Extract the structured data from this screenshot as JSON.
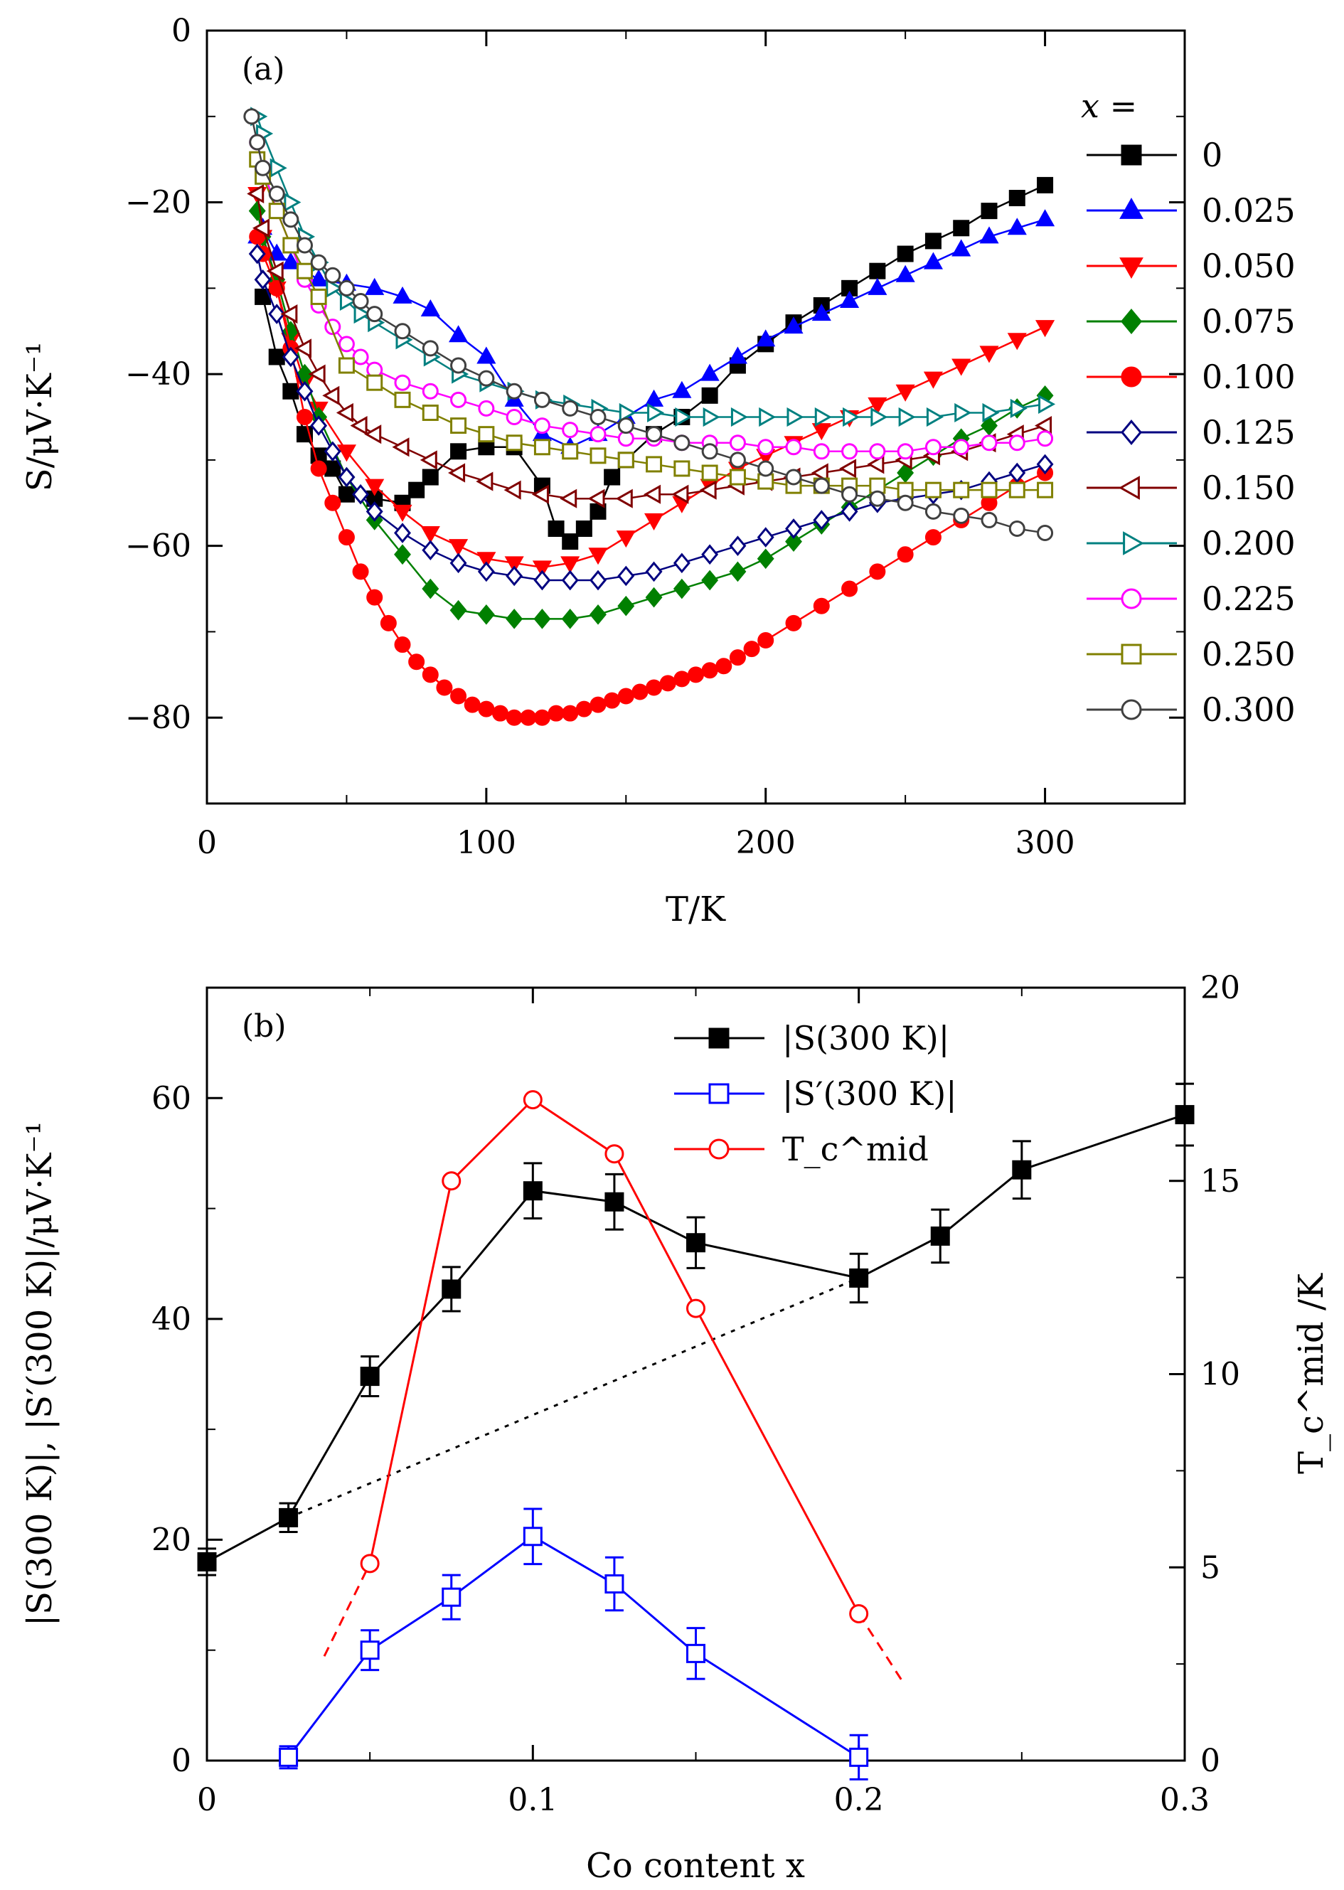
{
  "chart_data": [
    {
      "panel_label": "(a)",
      "type": "line",
      "xlabel": "T/K",
      "ylabel": "S/μV·K⁻¹",
      "xlim": [
        0,
        350
      ],
      "ylim": [
        -90,
        0
      ],
      "xticks": [
        0,
        100,
        200,
        300
      ],
      "yticks": [
        0,
        -20,
        -40,
        -60,
        -80
      ],
      "legend_title": "x =",
      "legend_position": "right",
      "series": [
        {
          "name": "0",
          "color": "#000000",
          "marker": "square",
          "filled": true,
          "x": [
            20,
            25,
            30,
            35,
            40,
            45,
            50,
            60,
            70,
            75,
            80,
            90,
            100,
            110,
            120,
            125,
            130,
            135,
            140,
            145,
            150,
            160,
            170,
            180,
            190,
            200,
            210,
            220,
            230,
            240,
            250,
            260,
            270,
            280,
            290,
            300
          ],
          "y": [
            -31,
            -38,
            -42,
            -47,
            -49.5,
            -51,
            -54,
            -54.5,
            -55,
            -53.5,
            -52,
            -49,
            -48.5,
            -48.5,
            -53,
            -58,
            -59.5,
            -58,
            -56,
            -52,
            -50,
            -47,
            -45,
            -42.5,
            -39,
            -36.5,
            -34,
            -32,
            -30,
            -28,
            -26,
            -24.5,
            -23,
            -21,
            -19.5,
            -18
          ]
        },
        {
          "name": "0.025",
          "color": "#0000ff",
          "marker": "triangle-up",
          "filled": true,
          "x": [
            18,
            20,
            25,
            30,
            40,
            50,
            60,
            70,
            80,
            90,
            100,
            110,
            120,
            130,
            140,
            150,
            160,
            170,
            180,
            190,
            200,
            210,
            220,
            230,
            240,
            250,
            260,
            270,
            280,
            290,
            300
          ],
          "y": [
            -24,
            -23,
            -26,
            -27,
            -29,
            -29.5,
            -30,
            -31,
            -32.5,
            -35.5,
            -38,
            -43,
            -47,
            -48.5,
            -47,
            -45,
            -43,
            -42,
            -40,
            -38,
            -36,
            -34.5,
            -33,
            -31.5,
            -30,
            -28.5,
            -27,
            -25.5,
            -24,
            -23,
            -22
          ]
        },
        {
          "name": "0.050",
          "color": "#ff0000",
          "marker": "triangle-down",
          "filled": true,
          "x": [
            18,
            20,
            25,
            30,
            35,
            40,
            50,
            60,
            70,
            80,
            90,
            100,
            110,
            120,
            130,
            140,
            150,
            160,
            170,
            180,
            190,
            200,
            210,
            220,
            230,
            240,
            250,
            260,
            270,
            280,
            290,
            300
          ],
          "y": [
            -19,
            -24,
            -30,
            -36,
            -41,
            -44,
            -49,
            -53,
            -56,
            -58.5,
            -60,
            -61.5,
            -62,
            -62.5,
            -62,
            -61,
            -59,
            -57,
            -55,
            -53,
            -51,
            -49.5,
            -48,
            -46.5,
            -45,
            -43.5,
            -42,
            -40.5,
            -39,
            -37.5,
            -36,
            -34.5
          ]
        },
        {
          "name": "0.075",
          "color": "#008000",
          "marker": "diamond",
          "filled": true,
          "x": [
            18,
            20,
            25,
            30,
            35,
            40,
            50,
            60,
            70,
            80,
            90,
            100,
            110,
            120,
            130,
            140,
            150,
            160,
            170,
            180,
            190,
            200,
            210,
            220,
            230,
            240,
            250,
            260,
            270,
            280,
            290,
            300
          ],
          "y": [
            -21,
            -24,
            -29,
            -35,
            -40,
            -45,
            -52,
            -57,
            -61,
            -65,
            -67.5,
            -68,
            -68.5,
            -68.5,
            -68.5,
            -68,
            -67,
            -66,
            -65,
            -64,
            -63,
            -61.5,
            -59.5,
            -57.5,
            -55.5,
            -53.5,
            -51.5,
            -49.5,
            -47.5,
            -46,
            -44,
            -42.5
          ]
        },
        {
          "name": "0.100",
          "color": "#ff0000",
          "marker": "circle",
          "filled": true,
          "x": [
            18,
            20,
            25,
            30,
            35,
            40,
            45,
            50,
            55,
            60,
            65,
            70,
            75,
            80,
            85,
            90,
            95,
            100,
            105,
            110,
            115,
            120,
            125,
            130,
            135,
            140,
            145,
            150,
            155,
            160,
            165,
            170,
            175,
            180,
            185,
            190,
            195,
            200,
            210,
            220,
            230,
            240,
            250,
            260,
            270,
            280,
            290,
            300
          ],
          "y": [
            -24,
            -26,
            -30,
            -37,
            -45,
            -51,
            -55,
            -59,
            -63,
            -66,
            -69,
            -71.5,
            -73.5,
            -75,
            -76.5,
            -77.5,
            -78.5,
            -79,
            -79.5,
            -80,
            -80,
            -80,
            -79.5,
            -79.5,
            -79,
            -78.5,
            -78,
            -77.5,
            -77,
            -76.5,
            -76,
            -75.5,
            -75,
            -74.5,
            -74,
            -73,
            -72,
            -71,
            -69,
            -67,
            -65,
            -63,
            -61,
            -59,
            -57,
            -55,
            -53,
            -51.5
          ]
        },
        {
          "name": "0.125",
          "color": "#000080",
          "marker": "diamond",
          "filled": false,
          "x": [
            18,
            20,
            25,
            30,
            35,
            40,
            45,
            50,
            55,
            60,
            70,
            80,
            90,
            100,
            110,
            120,
            130,
            140,
            150,
            160,
            170,
            180,
            190,
            200,
            210,
            220,
            230,
            240,
            250,
            260,
            270,
            280,
            290,
            300
          ],
          "y": [
            -26,
            -29,
            -33,
            -38,
            -42,
            -46,
            -49,
            -52,
            -54,
            -56,
            -58.5,
            -60.5,
            -62,
            -63,
            -63.5,
            -64,
            -64,
            -64,
            -63.5,
            -63,
            -62,
            -61,
            -60,
            -59,
            -58,
            -57,
            -56,
            -55,
            -54.5,
            -54,
            -53.5,
            -52.5,
            -51.5,
            -50.5
          ]
        },
        {
          "name": "0.150",
          "color": "#800000",
          "marker": "triangle-left",
          "filled": false,
          "x": [
            18,
            20,
            25,
            30,
            35,
            40,
            45,
            50,
            55,
            60,
            70,
            80,
            90,
            100,
            110,
            120,
            130,
            140,
            150,
            160,
            170,
            180,
            190,
            200,
            210,
            220,
            230,
            240,
            250,
            260,
            270,
            280,
            290,
            300
          ],
          "y": [
            -19,
            -23,
            -28,
            -33,
            -37,
            -40,
            -42.5,
            -44.5,
            -46,
            -47,
            -48.5,
            -50,
            -51.5,
            -52.5,
            -53.5,
            -54,
            -54.5,
            -54.5,
            -54.5,
            -54,
            -54,
            -53.5,
            -53,
            -52.5,
            -52,
            -51.5,
            -51,
            -50.5,
            -50,
            -49.5,
            -49,
            -48,
            -47,
            -46
          ]
        },
        {
          "name": "0.200",
          "color": "#008080",
          "marker": "triangle-right",
          "filled": false,
          "x": [
            18,
            20,
            25,
            30,
            35,
            40,
            45,
            50,
            55,
            60,
            70,
            80,
            90,
            100,
            110,
            120,
            130,
            140,
            150,
            160,
            170,
            180,
            190,
            200,
            210,
            220,
            230,
            240,
            250,
            260,
            270,
            280,
            290,
            300
          ],
          "y": [
            -10,
            -12,
            -16,
            -20,
            -24,
            -27,
            -30,
            -31.5,
            -33,
            -34,
            -36,
            -38,
            -40,
            -41,
            -42,
            -43,
            -43.5,
            -44,
            -44.5,
            -44.5,
            -45,
            -45,
            -45,
            -45,
            -45,
            -45,
            -45,
            -45,
            -45,
            -45,
            -44.5,
            -44.5,
            -44,
            -43.5
          ]
        },
        {
          "name": "0.225",
          "color": "#ff00ff",
          "marker": "circle",
          "filled": false,
          "x": [
            18,
            20,
            25,
            30,
            35,
            40,
            45,
            50,
            55,
            60,
            70,
            80,
            90,
            100,
            110,
            120,
            130,
            140,
            150,
            160,
            170,
            180,
            190,
            200,
            210,
            220,
            230,
            240,
            250,
            260,
            270,
            280,
            290,
            300
          ],
          "y": [
            -13,
            -16,
            -21,
            -25,
            -29,
            -32,
            -34.5,
            -36.5,
            -38,
            -39.5,
            -41,
            -42,
            -43,
            -44,
            -45,
            -46,
            -46.5,
            -47,
            -47.5,
            -47.5,
            -48,
            -48,
            -48,
            -48.5,
            -48.5,
            -49,
            -49,
            -49,
            -49,
            -48.5,
            -48.5,
            -48,
            -48,
            -47.5
          ]
        },
        {
          "name": "0.250",
          "color": "#808000",
          "marker": "square",
          "filled": false,
          "x": [
            18,
            20,
            25,
            30,
            35,
            40,
            50,
            60,
            70,
            80,
            90,
            100,
            110,
            120,
            130,
            140,
            150,
            160,
            170,
            180,
            190,
            200,
            210,
            220,
            230,
            240,
            250,
            260,
            270,
            280,
            290,
            300
          ],
          "y": [
            -15,
            -17,
            -21,
            -25,
            -28,
            -31,
            -39,
            -41,
            -43,
            -44.5,
            -46,
            -47,
            -48,
            -48.5,
            -49,
            -49.5,
            -50,
            -50.5,
            -51,
            -51.5,
            -52,
            -52.5,
            -53,
            -53,
            -53,
            -53,
            -53.5,
            -53.5,
            -53.5,
            -53.5,
            -53.5,
            -53.5
          ]
        },
        {
          "name": "0.300",
          "color": "#404040",
          "marker": "circle",
          "filled": false,
          "x": [
            16,
            18,
            20,
            25,
            30,
            35,
            40,
            45,
            50,
            55,
            60,
            70,
            80,
            90,
            100,
            110,
            120,
            130,
            140,
            150,
            160,
            170,
            180,
            190,
            200,
            210,
            220,
            230,
            240,
            250,
            260,
            270,
            280,
            290,
            300
          ],
          "y": [
            -10,
            -13,
            -16,
            -19,
            -22,
            -25,
            -27,
            -28.5,
            -30,
            -31.5,
            -33,
            -35,
            -37,
            -39,
            -40.5,
            -42,
            -43,
            -44,
            -45,
            -46,
            -47,
            -48,
            -49,
            -50,
            -51,
            -52,
            -53,
            -54,
            -54.5,
            -55,
            -56,
            -56.5,
            -57,
            -58,
            -58.5
          ]
        }
      ]
    },
    {
      "panel_label": "(b)",
      "type": "line",
      "xlabel": "Co content x",
      "ylabel": "|S(300 K)|, |S′(300 K)|/μV·K⁻¹",
      "y2label": "T_c^mid /K",
      "xlim": [
        0,
        0.3
      ],
      "ylim": [
        0,
        70
      ],
      "y2lim": [
        0,
        20
      ],
      "xticks": [
        0,
        0.1,
        0.2,
        0.3
      ],
      "xtick_labels": [
        "0",
        "0.1",
        "0.2",
        "0.3"
      ],
      "yticks": [
        0,
        20,
        40,
        60
      ],
      "y2ticks": [
        0,
        5,
        10,
        15,
        20
      ],
      "legend_position": "top-right",
      "series": [
        {
          "name": "|S(300 K)|",
          "color": "#000000",
          "marker": "square",
          "filled": true,
          "axis": "left",
          "x": [
            0,
            0.025,
            0.05,
            0.075,
            0.1,
            0.125,
            0.15,
            0.2,
            0.225,
            0.25,
            0.3
          ],
          "y": [
            18,
            22,
            34.8,
            42.7,
            51.6,
            50.6,
            46.9,
            43.7,
            47.5,
            53.5,
            58.5
          ],
          "error": [
            1.2,
            1.3,
            1.8,
            2.0,
            2.5,
            2.5,
            2.3,
            2.2,
            2.4,
            2.6,
            2.8
          ]
        },
        {
          "name": "|S′(300 K)|",
          "color": "#0000ff",
          "marker": "square",
          "filled": false,
          "axis": "left",
          "x": [
            0.025,
            0.05,
            0.075,
            0.1,
            0.125,
            0.15,
            0.2
          ],
          "y": [
            0.3,
            10,
            14.8,
            20.3,
            16,
            9.7,
            0.3
          ],
          "error": [
            1.0,
            1.8,
            2.0,
            2.5,
            2.4,
            2.3,
            2.0
          ]
        },
        {
          "name": "T_c^mid",
          "color": "#ff0000",
          "marker": "circle",
          "filled": false,
          "axis": "right",
          "x": [
            0.05,
            0.075,
            0.1,
            0.125,
            0.15,
            0.2
          ],
          "y": [
            5.1,
            15,
            17.1,
            15.7,
            11.7,
            3.8
          ]
        }
      ],
      "guide_lines": [
        {
          "color": "#000000",
          "style": "dotted",
          "axis": "left",
          "x": [
            0.025,
            0.2
          ],
          "y": [
            22,
            43.7
          ]
        },
        {
          "color": "#ff0000",
          "style": "dashed",
          "axis": "right",
          "x": [
            0.036,
            0.05
          ],
          "y": [
            2.7,
            5.1
          ]
        },
        {
          "color": "#ff0000",
          "style": "dashed",
          "axis": "right",
          "x": [
            0.2,
            0.213
          ],
          "y": [
            3.8,
            2.1
          ]
        }
      ]
    }
  ]
}
